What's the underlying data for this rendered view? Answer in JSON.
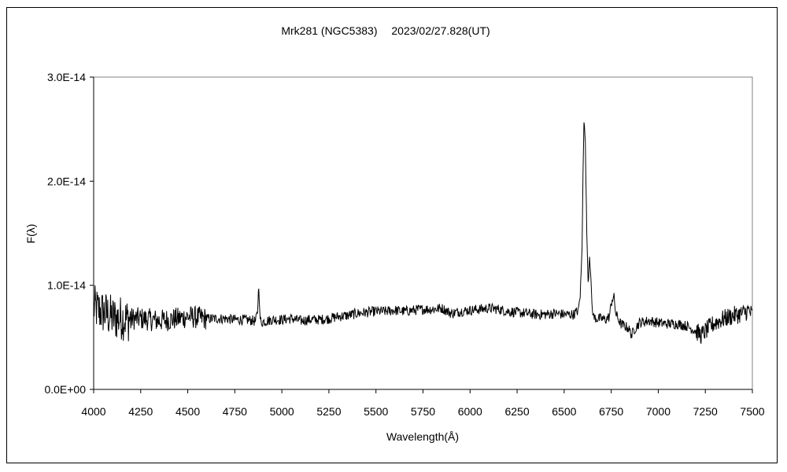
{
  "chart_data": {
    "type": "line",
    "title": "Mrk281 (NGC5383)　 2023/02/27.828(UT)",
    "xlabel": "Wavelength(Å)",
    "ylabel": "F(λ)",
    "xlim": [
      4000,
      7500
    ],
    "ylim": [
      0,
      3e-14
    ],
    "x_ticks": [
      4000,
      4250,
      4500,
      4750,
      5000,
      5250,
      5500,
      5750,
      6000,
      6250,
      6500,
      6750,
      7000,
      7250,
      7500
    ],
    "x_tick_labels": [
      "4000",
      "4250",
      "4500",
      "4750",
      "5000",
      "5250",
      "5500",
      "5750",
      "6000",
      "6250",
      "6500",
      "6750",
      "7000",
      "7250",
      "7500"
    ],
    "y_ticks": [
      0,
      1e-14,
      2e-14,
      3e-14
    ],
    "y_tick_labels": [
      "0.0E+00",
      "1.0E-14",
      "2.0E-14",
      "3.0E-14"
    ],
    "grid": false,
    "legend": "none",
    "line_color": "#000000",
    "spectrum": {
      "x": [
        4000,
        4025,
        4050,
        4075,
        4100,
        4125,
        4150,
        4175,
        4200,
        4250,
        4300,
        4350,
        4400,
        4450,
        4500,
        4550,
        4600,
        4650,
        4700,
        4750,
        4800,
        4850,
        4860,
        4870,
        4878,
        4883,
        4890,
        4900,
        4950,
        5000,
        5050,
        5100,
        5150,
        5200,
        5250,
        5300,
        5350,
        5400,
        5450,
        5500,
        5550,
        5600,
        5650,
        5700,
        5750,
        5800,
        5850,
        5900,
        5950,
        6000,
        6050,
        6100,
        6150,
        6200,
        6250,
        6300,
        6350,
        6400,
        6450,
        6500,
        6550,
        6575,
        6585,
        6595,
        6600,
        6605,
        6612,
        6620,
        6628,
        6635,
        6642,
        6650,
        6660,
        6675,
        6700,
        6720,
        6740,
        6755,
        6765,
        6775,
        6790,
        6800,
        6820,
        6840,
        6860,
        6870,
        6900,
        6950,
        7000,
        7050,
        7100,
        7150,
        7200,
        7230,
        7250,
        7300,
        7350,
        7400,
        7450,
        7480,
        7500
      ],
      "y": [
        7.9e-15,
        7.6e-15,
        7.4e-15,
        7.2e-15,
        6.9e-15,
        6.8e-15,
        6.9e-15,
        6.7e-15,
        6.8e-15,
        6.8e-15,
        6.7e-15,
        6.6e-15,
        6.7e-15,
        6.8e-15,
        7e-15,
        6.9e-15,
        6.8e-15,
        6.8e-15,
        6.8e-15,
        6.7e-15,
        6.7e-15,
        6.6e-15,
        6.5e-15,
        7.4e-15,
        1.03e-14,
        7e-15,
        6.4e-15,
        6.5e-15,
        6.7e-15,
        6.7e-15,
        6.8e-15,
        6.6e-15,
        6.7e-15,
        6.7e-15,
        6.8e-15,
        7e-15,
        7.1e-15,
        7.3e-15,
        7.4e-15,
        7.5e-15,
        7.5e-15,
        7.6e-15,
        7.5e-15,
        7.6e-15,
        7.7e-15,
        7.7e-15,
        7.8e-15,
        7.3e-15,
        7.5e-15,
        7.6e-15,
        7.7e-15,
        7.8e-15,
        7.7e-15,
        7.5e-15,
        7.4e-15,
        7.3e-15,
        7.2e-15,
        7.2e-15,
        7.3e-15,
        7.2e-15,
        7.2e-15,
        7.6e-15,
        9e-15,
        1.35e-14,
        2.1e-14,
        2.58e-14,
        2.4e-14,
        1.5e-14,
        1e-14,
        1.3e-14,
        1.05e-14,
        7.5e-15,
        6.9e-15,
        6.8e-15,
        6.8e-15,
        6.7e-15,
        7e-15,
        8.7e-15,
        8.8e-15,
        7.2e-15,
        6.7e-15,
        6.3e-15,
        6.1e-15,
        5.9e-15,
        5.2e-15,
        5.7e-15,
        6.4e-15,
        6.6e-15,
        6.4e-15,
        6.3e-15,
        6.3e-15,
        6.1e-15,
        5.6e-15,
        5.2e-15,
        5.6e-15,
        6.4e-15,
        6.8e-15,
        7.1e-15,
        7.3e-15,
        7.6e-15,
        7.1e-15
      ]
    }
  }
}
